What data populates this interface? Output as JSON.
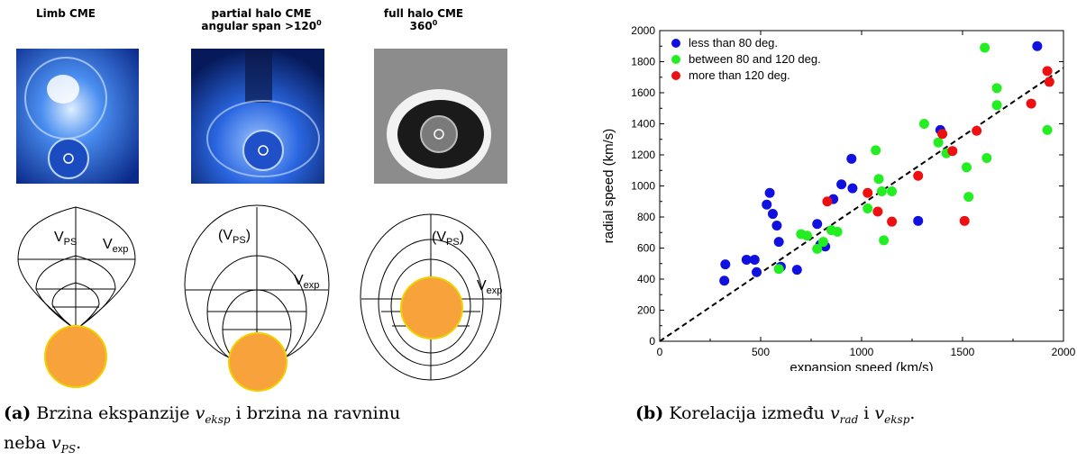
{
  "panel_a": {
    "titles": [
      {
        "line1": "Limb CME",
        "line2": "",
        "sup": ""
      },
      {
        "line1": "partial halo CME",
        "line2": "angular span >120",
        "sup": "0"
      },
      {
        "line1": "full halo CME",
        "line2": "360",
        "sup": "0"
      }
    ],
    "diagram_labels": {
      "vps_1": "V",
      "vps_1_sub": "PS",
      "vexp_1": "V",
      "vexp_1_sub": "exp",
      "vps_2": "(V",
      "vps_2_sub": "PS",
      "vps_2_close": ")",
      "vexp_2": "V",
      "vexp_2_sub": "exp",
      "vps_3": "(V",
      "vps_3_sub": "PS",
      "vps_3_close": ")",
      "vexp_3": "V",
      "vexp_3_sub": "exp"
    },
    "caption": {
      "label": "(a)",
      "text1": "Brzina ekspanzije",
      "var1": "v",
      "var1_sub": "eksp",
      "text2": "i brzina na ravninu",
      "text3": "neba",
      "var2": "v",
      "var2_sub": "PS",
      "end": "."
    }
  },
  "panel_b": {
    "caption": {
      "label": "(b)",
      "text1": "Korelacija između",
      "var1": "v",
      "var1_sub": "rad",
      "text2": "i",
      "var2": "v",
      "var2_sub": "eksp",
      "end": "."
    }
  },
  "chart_data": {
    "type": "scatter",
    "xlabel": "expansion speed (km/s)",
    "ylabel": "radial speed (km/s)",
    "xlim": [
      0,
      2000
    ],
    "ylim": [
      0,
      2000
    ],
    "xticks": [
      0,
      500,
      1000,
      1500,
      2000
    ],
    "yticks": [
      0,
      200,
      400,
      600,
      800,
      1000,
      1200,
      1400,
      1600,
      1800,
      2000
    ],
    "legend_position": "top-left",
    "series": [
      {
        "name": "less than 80 deg.",
        "color": "#1010e0",
        "points": [
          [
            320,
            390
          ],
          [
            325,
            495
          ],
          [
            430,
            525
          ],
          [
            470,
            525
          ],
          [
            480,
            445
          ],
          [
            530,
            880
          ],
          [
            545,
            955
          ],
          [
            560,
            820
          ],
          [
            580,
            745
          ],
          [
            590,
            640
          ],
          [
            600,
            480
          ],
          [
            780,
            755
          ],
          [
            795,
            620
          ],
          [
            820,
            610
          ],
          [
            860,
            915
          ],
          [
            900,
            1010
          ],
          [
            950,
            1175
          ],
          [
            955,
            985
          ],
          [
            1280,
            775
          ],
          [
            1390,
            1360
          ],
          [
            1870,
            1900
          ],
          [
            680,
            460
          ]
        ]
      },
      {
        "name": "between 80 and 120 deg.",
        "color": "#22ee22",
        "points": [
          [
            590,
            465
          ],
          [
            700,
            690
          ],
          [
            730,
            680
          ],
          [
            780,
            595
          ],
          [
            810,
            640
          ],
          [
            850,
            715
          ],
          [
            880,
            705
          ],
          [
            1030,
            855
          ],
          [
            1070,
            1230
          ],
          [
            1085,
            1045
          ],
          [
            1100,
            965
          ],
          [
            1110,
            650
          ],
          [
            1150,
            965
          ],
          [
            1310,
            1400
          ],
          [
            1380,
            1280
          ],
          [
            1420,
            1210
          ],
          [
            1520,
            1120
          ],
          [
            1530,
            930
          ],
          [
            1610,
            1890
          ],
          [
            1620,
            1180
          ],
          [
            1670,
            1520
          ],
          [
            1670,
            1630
          ],
          [
            1920,
            1360
          ]
        ]
      },
      {
        "name": "more than 120 deg.",
        "color": "#ee1010",
        "points": [
          [
            830,
            900
          ],
          [
            1030,
            955
          ],
          [
            1080,
            835
          ],
          [
            1150,
            770
          ],
          [
            1280,
            1065
          ],
          [
            1400,
            1335
          ],
          [
            1450,
            1225
          ],
          [
            1510,
            775
          ],
          [
            1570,
            1355
          ],
          [
            1840,
            1530
          ],
          [
            1920,
            1740
          ],
          [
            1930,
            1670
          ]
        ]
      }
    ],
    "fit_line": [
      [
        0,
        0
      ],
      [
        2000,
        1760
      ]
    ]
  }
}
